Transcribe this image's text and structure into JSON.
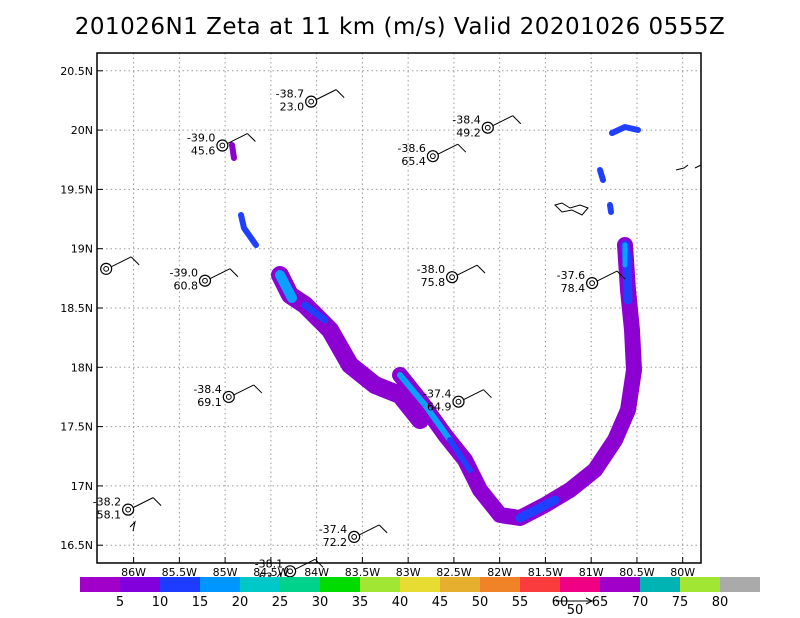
{
  "title": "201026N1  Zeta at 11 km (m/s) Valid 20201026  0555Z",
  "chart_data": {
    "type": "map",
    "xlim": [
      -86.4,
      -79.8
    ],
    "ylim": [
      16.35,
      20.65
    ],
    "x_ticks": [
      {
        "v": -86.0,
        "t": "86W"
      },
      {
        "v": -85.5,
        "t": "85.5W"
      },
      {
        "v": -85.0,
        "t": "85W"
      },
      {
        "v": -84.5,
        "t": "84.5W"
      },
      {
        "v": -84.0,
        "t": "84W"
      },
      {
        "v": -83.5,
        "t": "83.5W"
      },
      {
        "v": -83.0,
        "t": "83W"
      },
      {
        "v": -82.5,
        "t": "82.5W"
      },
      {
        "v": -82.0,
        "t": "82W"
      },
      {
        "v": -81.5,
        "t": "81.5W"
      },
      {
        "v": -81.0,
        "t": "81W"
      },
      {
        "v": -80.5,
        "t": "80.5W"
      },
      {
        "v": -80.0,
        "t": "80W"
      }
    ],
    "y_ticks": [
      {
        "v": 16.5,
        "t": "16.5N"
      },
      {
        "v": 17.0,
        "t": "17N"
      },
      {
        "v": 17.5,
        "t": "17.5N"
      },
      {
        "v": 18.0,
        "t": "18N"
      },
      {
        "v": 18.5,
        "t": "18.5N"
      },
      {
        "v": 19.0,
        "t": "19N"
      },
      {
        "v": 19.5,
        "t": "19.5N"
      },
      {
        "v": 20.0,
        "t": "20N"
      },
      {
        "v": 20.5,
        "t": "20.5N"
      }
    ],
    "grid": true,
    "dropsondes": [
      {
        "lon": -84.06,
        "lat": 20.24,
        "t": "-38.7",
        "v": "23.0"
      },
      {
        "lon": -85.03,
        "lat": 19.87,
        "t": "-39.0",
        "v": "45.6"
      },
      {
        "lon": -82.73,
        "lat": 19.78,
        "t": "-38.6",
        "v": "65.4"
      },
      {
        "lon": -82.13,
        "lat": 20.02,
        "t": "-38.4",
        "v": "49.2"
      },
      {
        "lon": -85.22,
        "lat": 18.73,
        "t": "-39.0",
        "v": "60.8"
      },
      {
        "lon": -82.52,
        "lat": 18.76,
        "t": "-38.0",
        "v": "75.8"
      },
      {
        "lon": -80.99,
        "lat": 18.71,
        "t": "-37.6",
        "v": "78.4"
      },
      {
        "lon": -84.96,
        "lat": 17.75,
        "t": "-38.4",
        "v": "69.1"
      },
      {
        "lon": -82.45,
        "lat": 17.71,
        "t": "-37.4",
        "v": "64.9"
      },
      {
        "lon": -86.06,
        "lat": 16.8,
        "t": "-38.2",
        "v": "58.1"
      },
      {
        "lon": -83.59,
        "lat": 16.57,
        "t": "-37.4",
        "v": "72.2"
      },
      {
        "lon": -84.29,
        "lat": 16.28,
        "t": "-38.1",
        "v": "63.4"
      }
    ],
    "no_label_sondes": [
      {
        "lon": -86.3,
        "lat": 18.83
      }
    ],
    "colorbar": {
      "labels": [
        "5",
        "10",
        "15",
        "20",
        "25",
        "30",
        "35",
        "40",
        "45",
        "50",
        "55",
        "60",
        "65",
        "70",
        "75",
        "80"
      ],
      "colors": [
        "#a000c8",
        "#8200dc",
        "#1e3cff",
        "#0096ff",
        "#00c8c8",
        "#00d28c",
        "#00dc00",
        "#a0e632",
        "#e6dc32",
        "#e6af2d",
        "#f08228",
        "#fa3c3c",
        "#f00082",
        "#a000c8",
        "#00b4b4",
        "#a0e632",
        "#aaaaaa"
      ]
    },
    "reference_vector": "50"
  }
}
